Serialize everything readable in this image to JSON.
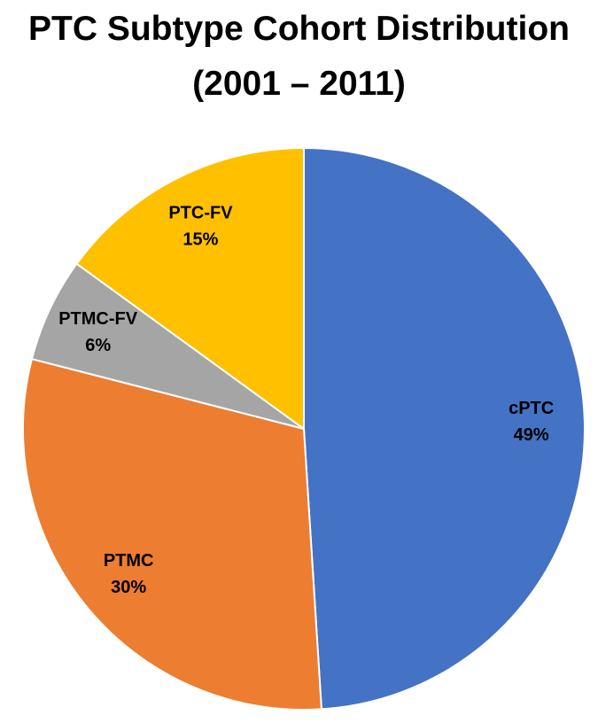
{
  "chart_data": {
    "type": "pie",
    "title": "PTC Subtype Cohort Distribution (2001 – 2011)",
    "categories": [
      "cPTC",
      "PTMC",
      "PTMC-FV",
      "PTC-FV"
    ],
    "values": [
      49,
      30,
      6,
      15
    ],
    "value_labels": [
      "49%",
      "30%",
      "6%",
      "15%"
    ],
    "colors": [
      "#4472c4",
      "#ed7d31",
      "#a5a5a5",
      "#ffc000"
    ]
  }
}
